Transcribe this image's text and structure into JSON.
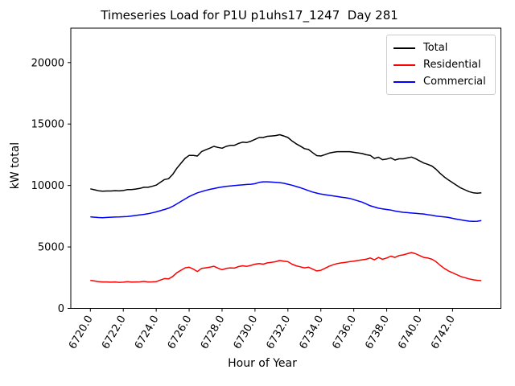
{
  "title": "Timeseries Load for P1U p1uhs17_1247  Day 281",
  "chart_data": {
    "type": "line",
    "title": "Timeseries Load for P1U p1uhs17_1247  Day 281",
    "xlabel": "Hour of Year",
    "ylabel": "kW total",
    "legend_position": "upper right",
    "grid": false,
    "xlim": [
      6718.8125,
      6744.9375
    ],
    "ylim": [
      0,
      22800
    ],
    "x_tick_values": [
      6720,
      6722,
      6724,
      6726,
      6728,
      6730,
      6732,
      6734,
      6736,
      6738,
      6740,
      6742
    ],
    "x_tick_labels": [
      "6720.0",
      "6722.0",
      "6724.0",
      "6726.0",
      "6728.0",
      "6730.0",
      "6732.0",
      "6734.0",
      "6736.0",
      "6738.0",
      "6740.0",
      "6742.0"
    ],
    "y_tick_values": [
      0,
      5000,
      10000,
      15000,
      20000
    ],
    "y_tick_labels": [
      "0",
      "5000",
      "10000",
      "15000",
      "20000"
    ],
    "x": [
      6720.0,
      6720.25,
      6720.5,
      6720.75,
      6721.0,
      6721.25,
      6721.5,
      6721.75,
      6722.0,
      6722.25,
      6722.5,
      6722.75,
      6723.0,
      6723.25,
      6723.5,
      6723.75,
      6724.0,
      6724.25,
      6724.5,
      6724.75,
      6725.0,
      6725.25,
      6725.5,
      6725.75,
      6726.0,
      6726.25,
      6726.5,
      6726.75,
      6727.0,
      6727.25,
      6727.5,
      6727.75,
      6728.0,
      6728.25,
      6728.5,
      6728.75,
      6729.0,
      6729.25,
      6729.5,
      6729.75,
      6730.0,
      6730.25,
      6730.5,
      6730.75,
      6731.0,
      6731.25,
      6731.5,
      6731.75,
      6732.0,
      6732.25,
      6732.5,
      6732.75,
      6733.0,
      6733.25,
      6733.5,
      6733.75,
      6734.0,
      6734.25,
      6734.5,
      6734.75,
      6735.0,
      6735.25,
      6735.5,
      6735.75,
      6736.0,
      6736.25,
      6736.5,
      6736.75,
      6737.0,
      6737.25,
      6737.5,
      6737.75,
      6738.0,
      6738.25,
      6738.5,
      6738.75,
      6739.0,
      6739.25,
      6739.5,
      6739.75,
      6740.0,
      6740.25,
      6740.5,
      6740.75,
      6741.0,
      6741.25,
      6741.5,
      6741.75,
      6742.0,
      6742.25,
      6742.5,
      6742.75,
      6743.0,
      6743.25,
      6743.5,
      6743.75
    ],
    "series": [
      {
        "name": "Total",
        "color": "#000000",
        "values": [
          9730,
          9650,
          9570,
          9530,
          9550,
          9550,
          9580,
          9560,
          9590,
          9660,
          9660,
          9710,
          9760,
          9850,
          9850,
          9930,
          10030,
          10250,
          10480,
          10550,
          10900,
          11400,
          11800,
          12200,
          12450,
          12450,
          12400,
          12750,
          12900,
          13030,
          13180,
          13100,
          13030,
          13180,
          13260,
          13270,
          13420,
          13520,
          13500,
          13600,
          13750,
          13900,
          13900,
          14000,
          14030,
          14060,
          14130,
          14030,
          13900,
          13620,
          13390,
          13200,
          13000,
          12930,
          12670,
          12430,
          12400,
          12510,
          12630,
          12700,
          12750,
          12750,
          12750,
          12750,
          12700,
          12650,
          12600,
          12500,
          12450,
          12200,
          12300,
          12100,
          12150,
          12250,
          12070,
          12170,
          12170,
          12240,
          12310,
          12180,
          12000,
          11830,
          11720,
          11580,
          11320,
          10980,
          10690,
          10450,
          10230,
          10010,
          9800,
          9650,
          9500,
          9410,
          9370,
          9410
        ]
      },
      {
        "name": "Residential",
        "color": "#ff0000",
        "values": [
          2280,
          2230,
          2180,
          2150,
          2150,
          2130,
          2150,
          2120,
          2130,
          2180,
          2140,
          2150,
          2160,
          2200,
          2150,
          2160,
          2180,
          2300,
          2430,
          2400,
          2600,
          2900,
          3100,
          3300,
          3350,
          3200,
          3000,
          3250,
          3300,
          3350,
          3430,
          3280,
          3150,
          3250,
          3300,
          3280,
          3400,
          3470,
          3420,
          3500,
          3600,
          3650,
          3600,
          3700,
          3750,
          3800,
          3900,
          3850,
          3800,
          3600,
          3470,
          3380,
          3300,
          3350,
          3200,
          3050,
          3100,
          3260,
          3430,
          3550,
          3650,
          3700,
          3750,
          3800,
          3850,
          3900,
          3950,
          4000,
          4100,
          3950,
          4150,
          4000,
          4100,
          4250,
          4150,
          4300,
          4350,
          4450,
          4550,
          4450,
          4300,
          4150,
          4100,
          4000,
          3800,
          3500,
          3250,
          3050,
          2900,
          2750,
          2600,
          2500,
          2400,
          2330,
          2280,
          2260
        ]
      },
      {
        "name": "Commercial",
        "color": "#0000ff",
        "values": [
          7450,
          7420,
          7390,
          7380,
          7400,
          7420,
          7430,
          7440,
          7460,
          7480,
          7520,
          7560,
          7600,
          7650,
          7700,
          7770,
          7850,
          7950,
          8050,
          8150,
          8300,
          8500,
          8700,
          8900,
          9100,
          9250,
          9400,
          9500,
          9600,
          9680,
          9750,
          9820,
          9880,
          9930,
          9960,
          9990,
          10020,
          10050,
          10080,
          10100,
          10150,
          10250,
          10300,
          10300,
          10280,
          10260,
          10230,
          10180,
          10100,
          10020,
          9920,
          9820,
          9700,
          9580,
          9470,
          9380,
          9300,
          9250,
          9200,
          9150,
          9100,
          9050,
          9000,
          8950,
          8850,
          8750,
          8650,
          8500,
          8350,
          8250,
          8150,
          8100,
          8050,
          8000,
          7920,
          7870,
          7820,
          7790,
          7760,
          7730,
          7700,
          7680,
          7620,
          7580,
          7520,
          7480,
          7440,
          7400,
          7330,
          7260,
          7200,
          7150,
          7100,
          7080,
          7090,
          7150
        ]
      }
    ]
  }
}
